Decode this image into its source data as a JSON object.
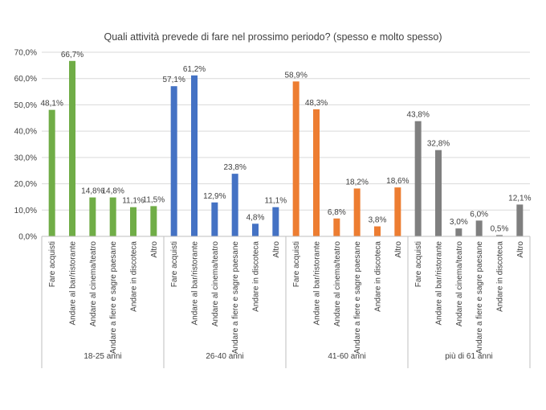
{
  "chart_data": {
    "type": "bar",
    "title": "Quali attività prevede di fare nel prossimo periodo? (spesso e molto spesso)",
    "ylim": [
      0,
      70
    ],
    "yticks": [
      "0,0%",
      "10,0%",
      "20,0%",
      "30,0%",
      "40,0%",
      "50,0%",
      "60,0%",
      "70,0%"
    ],
    "grid": true,
    "categories": [
      "Fare acquisti",
      "Andare al bar/ristorante",
      "Andare al cinema/teatro",
      "Andare a fiere e sagre paesane",
      "Andare in discoteca",
      "Altro"
    ],
    "groups": [
      {
        "name": "18-25 anni",
        "color": "#70ad47",
        "values": [
          48.1,
          66.7,
          14.8,
          14.8,
          11.1,
          11.5
        ],
        "labels": [
          "48,1%",
          "66,7%",
          "14,8%",
          "14,8%",
          "11,1%",
          "11,5%"
        ]
      },
      {
        "name": "26-40 anni",
        "color": "#4472c4",
        "values": [
          57.1,
          61.2,
          12.9,
          23.8,
          4.8,
          11.1
        ],
        "labels": [
          "57,1%",
          "61,2%",
          "12,9%",
          "23,8%",
          "4,8%",
          "11,1%"
        ]
      },
      {
        "name": "41-60 anni",
        "color": "#ed7d31",
        "values": [
          58.9,
          48.3,
          6.8,
          18.2,
          3.8,
          18.6
        ],
        "labels": [
          "58,9%",
          "48,3%",
          "6,8%",
          "18,2%",
          "3,8%",
          "18,6%"
        ]
      },
      {
        "name": "più di 61 anni",
        "color": "#7f7f7f",
        "values": [
          43.8,
          32.8,
          3.0,
          6.0,
          0.5,
          12.1
        ],
        "labels": [
          "43,8%",
          "32,8%",
          "3,0%",
          "6,0%",
          "0,5%",
          "12,1%"
        ]
      }
    ]
  }
}
